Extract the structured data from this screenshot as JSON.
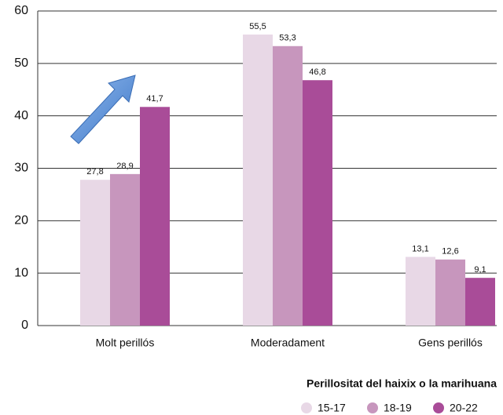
{
  "chart_data": {
    "type": "bar",
    "x_label": "Perillositat del haixix o la marihuana",
    "categories": [
      "Molt perillós",
      "Moderadament",
      "Gens perillós"
    ],
    "series": [
      {
        "name": "15-17",
        "color": "#e8d8e6",
        "values": [
          27.8,
          55.5,
          13.1
        ],
        "value_labels": [
          "27,8",
          "55,5",
          "13,1"
        ]
      },
      {
        "name": "18-19",
        "color": "#c796bd",
        "values": [
          28.9,
          53.3,
          12.6
        ],
        "value_labels": [
          "28,9",
          "53,3",
          "12,6"
        ]
      },
      {
        "name": "20-22",
        "color": "#a94c98",
        "values": [
          41.7,
          46.8,
          9.1
        ],
        "value_labels": [
          "41,7",
          "46,8",
          "9,1"
        ]
      }
    ],
    "ylim": [
      0,
      60
    ],
    "yticks": [
      0,
      10,
      20,
      30,
      40,
      50,
      60
    ],
    "grid": true,
    "legend": "bottom"
  }
}
